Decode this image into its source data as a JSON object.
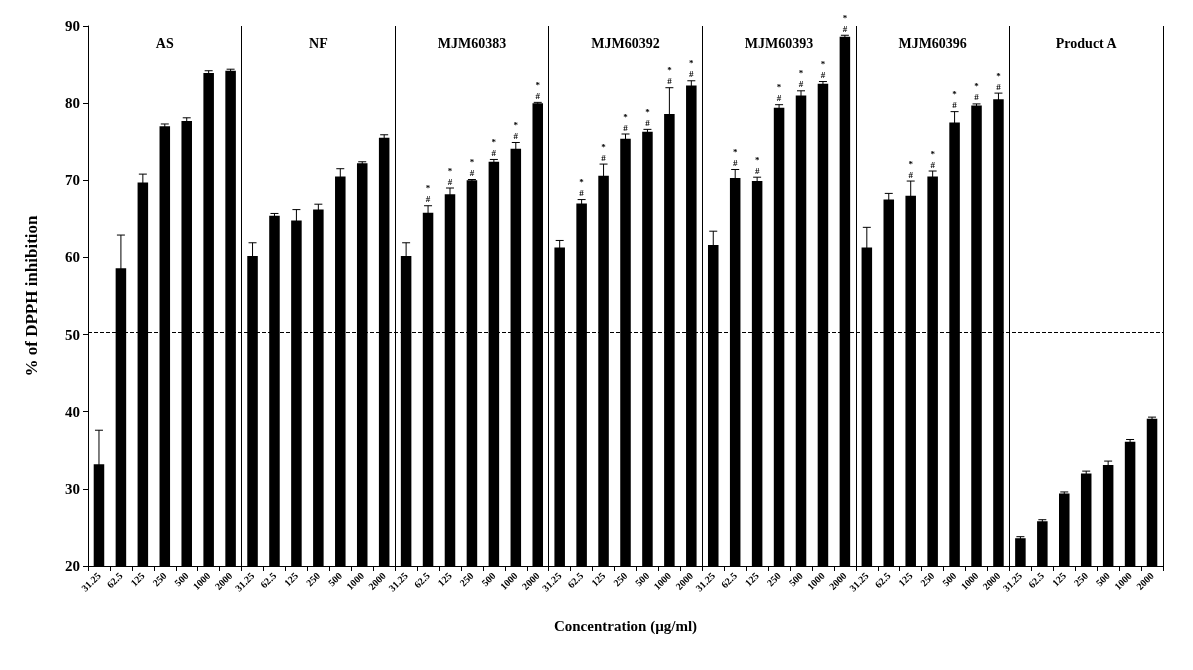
{
  "chart_data": {
    "type": "bar",
    "xlabel": "Concentration (µg/ml)",
    "ylabel": "% of DPPH inhibition",
    "stacked": true,
    "categories": [
      "31.25",
      "62.5",
      "125",
      "250",
      "500",
      "1000",
      "2000",
      "31.25",
      "62.5",
      "125",
      "250",
      "500",
      "1000",
      "2000",
      "31.25",
      "62.5",
      "125",
      "250",
      "500",
      "1000",
      "2000",
      "31.25",
      "62.5",
      "125",
      "250",
      "500",
      "1000",
      "2000",
      "31.25",
      "62.5",
      "125",
      "250",
      "500",
      "1000",
      "2000",
      "31.25",
      "62.5",
      "125",
      "250",
      "500",
      "1000",
      "2000",
      "31.25",
      "62.5",
      "125",
      "250",
      "500",
      "1000",
      "2000"
    ],
    "ylim": [
      20,
      90
    ],
    "yticks": [
      20,
      30,
      40,
      50,
      60,
      70,
      80,
      90
    ],
    "grid": false,
    "annotations": [
      "AS",
      "NF",
      "MJM60383",
      "MJM60392",
      "MJM60393",
      "MJM60396",
      "Product A"
    ],
    "ref_lines": [
      {
        "axis": "y",
        "value": 50.3,
        "line_style": "dashed",
        "color": "#000000"
      }
    ],
    "series": [
      {
        "color": "#000000",
        "values": [
          33.2,
          58.6,
          69.7,
          77.0,
          77.7,
          83.9,
          84.2,
          null,
          null,
          null,
          null,
          null,
          null,
          null,
          null,
          null,
          null,
          null,
          null,
          null,
          null,
          null,
          null,
          null,
          null,
          null,
          null,
          null,
          null,
          null,
          null,
          null,
          null,
          null,
          null,
          null,
          null,
          null,
          null,
          null,
          null,
          null,
          null,
          null,
          null,
          null,
          null,
          null,
          null
        ],
        "errors": [
          4.4,
          4.3,
          1.1,
          0.3,
          0.4,
          0.3,
          0.2,
          null,
          null,
          null,
          null,
          null,
          null,
          null,
          null,
          null,
          null,
          null,
          null,
          null,
          null,
          null,
          null,
          null,
          null,
          null,
          null,
          null,
          null,
          null,
          null,
          null,
          null,
          null,
          null,
          null,
          null,
          null,
          null,
          null,
          null,
          null,
          null,
          null,
          null,
          null,
          null,
          null,
          null
        ]
      },
      {
        "color": "#000000",
        "values": [
          null,
          null,
          null,
          null,
          null,
          null,
          null,
          60.2,
          65.4,
          64.8,
          66.2,
          70.5,
          72.2,
          75.5,
          null,
          null,
          null,
          null,
          null,
          null,
          null,
          null,
          null,
          null,
          null,
          null,
          null,
          null,
          null,
          null,
          null,
          null,
          null,
          null,
          null,
          null,
          null,
          null,
          null,
          null,
          null,
          null,
          null,
          null,
          null,
          null,
          null,
          null,
          null
        ],
        "errors": [
          null,
          null,
          null,
          null,
          null,
          null,
          null,
          1.7,
          0.3,
          1.4,
          0.7,
          1.0,
          0.2,
          0.4,
          null,
          null,
          null,
          null,
          null,
          null,
          null,
          null,
          null,
          null,
          null,
          null,
          null,
          null,
          null,
          null,
          null,
          null,
          null,
          null,
          null,
          null,
          null,
          null,
          null,
          null,
          null,
          null,
          null,
          null,
          null,
          null,
          null,
          null,
          null
        ]
      },
      {
        "color": "#000000",
        "values": [
          null,
          null,
          null,
          null,
          null,
          null,
          null,
          null,
          null,
          null,
          null,
          null,
          null,
          null,
          60.2,
          65.8,
          68.2,
          70.0,
          72.4,
          74.1,
          80.0,
          null,
          null,
          null,
          null,
          null,
          null,
          null,
          null,
          null,
          null,
          null,
          null,
          null,
          null,
          null,
          null,
          null,
          null,
          null,
          null,
          null,
          null,
          null,
          null,
          null,
          null,
          null,
          null
        ],
        "errors": [
          null,
          null,
          null,
          null,
          null,
          null,
          null,
          null,
          null,
          null,
          null,
          null,
          null,
          null,
          1.7,
          0.9,
          0.8,
          0.1,
          0.3,
          0.8,
          0.1,
          null,
          null,
          null,
          null,
          null,
          null,
          null,
          null,
          null,
          null,
          null,
          null,
          null,
          null,
          null,
          null,
          null,
          null,
          null,
          null,
          null,
          null,
          null,
          null,
          null,
          null,
          null,
          null
        ],
        "value_labels": [
          null,
          null,
          null,
          null,
          null,
          null,
          null,
          null,
          null,
          null,
          null,
          null,
          null,
          null,
          null,
          "*\n#",
          "*\n#",
          "*\n#",
          "*\n#",
          "*\n#",
          "*\n#",
          null,
          null,
          null,
          null,
          null,
          null,
          null,
          null,
          null,
          null,
          null,
          null,
          null,
          null,
          null,
          null,
          null,
          null,
          null,
          null,
          null,
          null,
          null,
          null,
          null,
          null,
          null,
          null
        ]
      },
      {
        "color": "#000000",
        "values": [
          null,
          null,
          null,
          null,
          null,
          null,
          null,
          null,
          null,
          null,
          null,
          null,
          null,
          null,
          null,
          null,
          null,
          null,
          null,
          null,
          null,
          61.3,
          67.0,
          70.6,
          75.4,
          76.3,
          78.6,
          82.3,
          null,
          null,
          null,
          null,
          null,
          null,
          null,
          null,
          null,
          null,
          null,
          null,
          null,
          null,
          null,
          null,
          null,
          null,
          null,
          null,
          null
        ],
        "errors": [
          null,
          null,
          null,
          null,
          null,
          null,
          null,
          null,
          null,
          null,
          null,
          null,
          null,
          null,
          null,
          null,
          null,
          null,
          null,
          null,
          null,
          0.9,
          0.5,
          1.5,
          0.6,
          0.3,
          3.4,
          0.6,
          null,
          null,
          null,
          null,
          null,
          null,
          null,
          null,
          null,
          null,
          null,
          null,
          null,
          null,
          null,
          null,
          null,
          null,
          null,
          null,
          null
        ],
        "value_labels": [
          null,
          null,
          null,
          null,
          null,
          null,
          null,
          null,
          null,
          null,
          null,
          null,
          null,
          null,
          null,
          null,
          null,
          null,
          null,
          null,
          null,
          null,
          "*\n#",
          "*\n#",
          "*\n#",
          "*\n#",
          "*\n#",
          "*\n#",
          null,
          null,
          null,
          null,
          null,
          null,
          null,
          null,
          null,
          null,
          null,
          null,
          null,
          null,
          null,
          null,
          null,
          null,
          null,
          null,
          null
        ]
      },
      {
        "color": "#000000",
        "values": [
          null,
          null,
          null,
          null,
          null,
          null,
          null,
          null,
          null,
          null,
          null,
          null,
          null,
          null,
          null,
          null,
          null,
          null,
          null,
          null,
          null,
          null,
          null,
          null,
          null,
          null,
          null,
          null,
          61.6,
          70.3,
          69.9,
          79.4,
          81.0,
          82.5,
          88.6,
          null,
          null,
          null,
          null,
          null,
          null,
          null,
          null,
          null,
          null,
          null,
          null,
          null,
          null
        ],
        "errors": [
          null,
          null,
          null,
          null,
          null,
          null,
          null,
          null,
          null,
          null,
          null,
          null,
          null,
          null,
          null,
          null,
          null,
          null,
          null,
          null,
          null,
          null,
          null,
          null,
          null,
          null,
          null,
          null,
          1.8,
          1.1,
          0.5,
          0.4,
          0.6,
          0.3,
          0.2,
          null,
          null,
          null,
          null,
          null,
          null,
          null,
          null,
          null,
          null,
          null,
          null,
          null,
          null
        ],
        "value_labels": [
          null,
          null,
          null,
          null,
          null,
          null,
          null,
          null,
          null,
          null,
          null,
          null,
          null,
          null,
          null,
          null,
          null,
          null,
          null,
          null,
          null,
          null,
          null,
          null,
          null,
          null,
          null,
          null,
          null,
          "*\n#",
          "*\n#",
          "*\n#",
          "*\n#",
          "*\n#",
          "*\n#",
          null,
          null,
          null,
          null,
          null,
          null,
          null,
          null,
          null,
          null,
          null,
          null,
          null,
          null
        ]
      },
      {
        "color": "#000000",
        "values": [
          null,
          null,
          null,
          null,
          null,
          null,
          null,
          null,
          null,
          null,
          null,
          null,
          null,
          null,
          null,
          null,
          null,
          null,
          null,
          null,
          null,
          null,
          null,
          null,
          null,
          null,
          null,
          null,
          null,
          null,
          null,
          null,
          null,
          null,
          null,
          61.3,
          67.5,
          68.0,
          70.5,
          77.5,
          79.7,
          80.5,
          null,
          null,
          null,
          null,
          null,
          null,
          null
        ],
        "errors": [
          null,
          null,
          null,
          null,
          null,
          null,
          null,
          null,
          null,
          null,
          null,
          null,
          null,
          null,
          null,
          null,
          null,
          null,
          null,
          null,
          null,
          null,
          null,
          null,
          null,
          null,
          null,
          null,
          null,
          null,
          null,
          null,
          null,
          null,
          null,
          2.6,
          0.8,
          1.9,
          0.7,
          1.4,
          0.2,
          0.8,
          null,
          null,
          null,
          null,
          null,
          null,
          null
        ],
        "value_labels": [
          null,
          null,
          null,
          null,
          null,
          null,
          null,
          null,
          null,
          null,
          null,
          null,
          null,
          null,
          null,
          null,
          null,
          null,
          null,
          null,
          null,
          null,
          null,
          null,
          null,
          null,
          null,
          null,
          null,
          null,
          null,
          null,
          null,
          null,
          null,
          null,
          null,
          "*\n#",
          "*\n#",
          "*\n#",
          "*\n#",
          "*\n#",
          null,
          null,
          null,
          null,
          null,
          null,
          null
        ]
      },
      {
        "color": "#000000",
        "values": [
          null,
          null,
          null,
          null,
          null,
          null,
          null,
          null,
          null,
          null,
          null,
          null,
          null,
          null,
          null,
          null,
          null,
          null,
          null,
          null,
          null,
          null,
          null,
          null,
          null,
          null,
          null,
          null,
          null,
          null,
          null,
          null,
          null,
          null,
          null,
          null,
          null,
          null,
          null,
          null,
          null,
          null,
          23.6,
          25.8,
          29.4,
          32.0,
          33.1,
          36.1,
          39.1
        ],
        "errors": [
          null,
          null,
          null,
          null,
          null,
          null,
          null,
          null,
          null,
          null,
          null,
          null,
          null,
          null,
          null,
          null,
          null,
          null,
          null,
          null,
          null,
          null,
          null,
          null,
          null,
          null,
          null,
          null,
          null,
          null,
          null,
          null,
          null,
          null,
          null,
          null,
          null,
          null,
          null,
          null,
          null,
          null,
          0.2,
          0.2,
          0.2,
          0.3,
          0.5,
          0.3,
          0.2
        ]
      }
    ]
  }
}
